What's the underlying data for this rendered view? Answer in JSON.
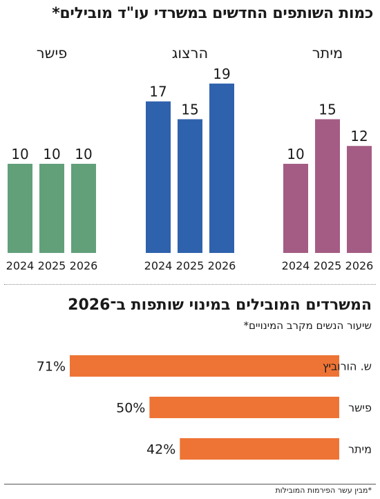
{
  "title": "כמות השותפים החדשים במשרדי עו\"ד מובילים*",
  "chart_data": [
    {
      "type": "bar",
      "title": "כמות השותפים החדשים במשרדי עו\"ד מובילים*",
      "categories": [
        "2024",
        "2025",
        "2026"
      ],
      "ylim": [
        0,
        20
      ],
      "groups": [
        {
          "name": "מיתר",
          "color": "#a45c84",
          "values": [
            10,
            15,
            12
          ]
        },
        {
          "name": "הרצוג",
          "color": "#2f62ad",
          "values": [
            17,
            15,
            19
          ]
        },
        {
          "name": "פישר",
          "color": "#62a07a",
          "values": [
            10,
            10,
            10
          ]
        }
      ]
    },
    {
      "type": "bar",
      "orientation": "horizontal",
      "title": "המשרדים המובילים במינוי שותפות ב־2026",
      "subtitle": "שיעור הנשים מקרב המינויים*",
      "color": "#ee7435",
      "unit": "%",
      "categories": [
        "ש. הורוביץ",
        "פישר",
        "מיתר"
      ],
      "values": [
        71,
        50,
        42
      ],
      "xlim": [
        0,
        100
      ]
    }
  ],
  "footnote": "*מבין עשר הפירמות המובילות"
}
